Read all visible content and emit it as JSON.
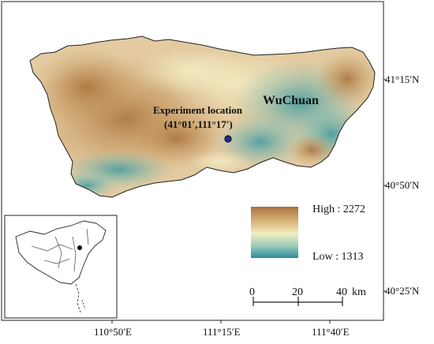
{
  "map": {
    "place_name": "WuChuan",
    "experiment": {
      "title": "Experiment location",
      "coords": "(41°01′,111°17′)"
    },
    "latitude_labels": [
      "41°15′N",
      "40°50′N",
      "40°25′N"
    ],
    "longitude_labels": [
      "110°50′E",
      "111°15′E",
      "111°40′E"
    ],
    "legend": {
      "high": "High : 2272",
      "low": "Low : 1313",
      "colors": [
        "#a9723f",
        "#d9b67d",
        "#f3ecbf",
        "#9fcfbc",
        "#2e8b9a"
      ]
    },
    "scale_bar": {
      "ticks": [
        "0",
        "20",
        "40"
      ],
      "unit": "km"
    },
    "marker_color": "#1f2d8c"
  }
}
